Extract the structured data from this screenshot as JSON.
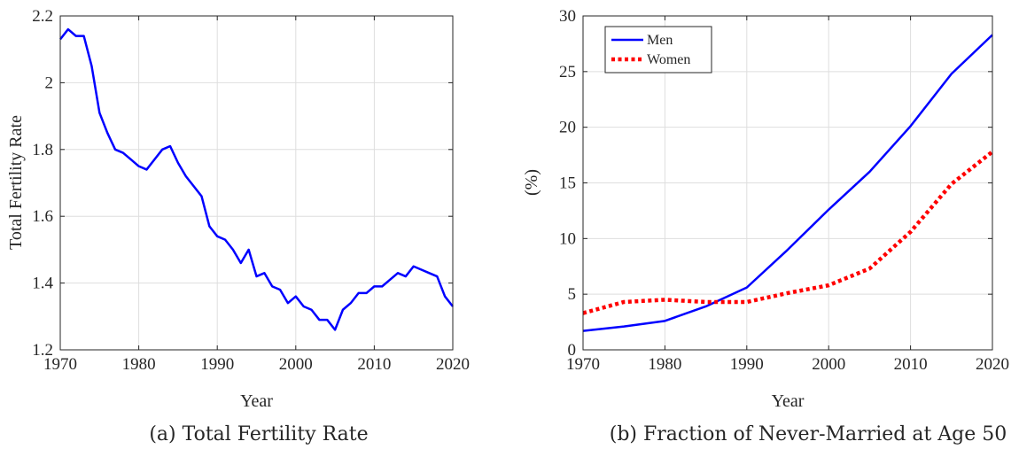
{
  "chart_data": [
    {
      "type": "line",
      "caption": "(a) Total Fertility Rate",
      "xlabel": "Year",
      "ylabel": "Total Fertility Rate",
      "xlim": [
        1970,
        2020
      ],
      "ylim": [
        1.2,
        2.2
      ],
      "xticks": [
        1970,
        1980,
        1990,
        2000,
        2010,
        2020
      ],
      "yticks": [
        1.2,
        1.4,
        1.6,
        1.8,
        2.0,
        2.2
      ],
      "ytick_labels": [
        "1.2",
        "1.4",
        "1.6",
        "1.8",
        "2",
        "2.2"
      ],
      "grid": true,
      "series": [
        {
          "color": "#0000ff",
          "style": "solid",
          "x": [
            1970,
            1971,
            1972,
            1973,
            1974,
            1975,
            1976,
            1977,
            1978,
            1979,
            1980,
            1981,
            1982,
            1983,
            1984,
            1985,
            1986,
            1987,
            1988,
            1989,
            1990,
            1991,
            1992,
            1993,
            1994,
            1995,
            1996,
            1997,
            1998,
            1999,
            2000,
            2001,
            2002,
            2003,
            2004,
            2005,
            2006,
            2007,
            2008,
            2009,
            2010,
            2011,
            2012,
            2013,
            2014,
            2015,
            2016,
            2017,
            2018,
            2019,
            2020
          ],
          "values": [
            2.13,
            2.16,
            2.14,
            2.14,
            2.05,
            1.91,
            1.85,
            1.8,
            1.79,
            1.77,
            1.75,
            1.74,
            1.77,
            1.8,
            1.81,
            1.76,
            1.72,
            1.69,
            1.66,
            1.57,
            1.54,
            1.53,
            1.5,
            1.46,
            1.5,
            1.42,
            1.43,
            1.39,
            1.38,
            1.34,
            1.36,
            1.33,
            1.32,
            1.29,
            1.29,
            1.26,
            1.32,
            1.34,
            1.37,
            1.37,
            1.39,
            1.39,
            1.41,
            1.43,
            1.42,
            1.45,
            1.44,
            1.43,
            1.42,
            1.36,
            1.33
          ]
        }
      ]
    },
    {
      "type": "line",
      "caption": "(b) Fraction of Never-Married at Age 50",
      "xlabel": "Year",
      "ylabel": "(%)",
      "xlim": [
        1970,
        2020
      ],
      "ylim": [
        0,
        30
      ],
      "xticks": [
        1970,
        1980,
        1990,
        2000,
        2010,
        2020
      ],
      "yticks": [
        0,
        5,
        10,
        15,
        20,
        25,
        30
      ],
      "ytick_labels": [
        "0",
        "5",
        "10",
        "15",
        "20",
        "25",
        "30"
      ],
      "grid": true,
      "legend_position": "top-left",
      "series": [
        {
          "name": "Men",
          "color": "#0000ff",
          "style": "solid",
          "x": [
            1970,
            1975,
            1980,
            1985,
            1990,
            1995,
            2000,
            2005,
            2010,
            2015,
            2020
          ],
          "values": [
            1.7,
            2.1,
            2.6,
            3.9,
            5.6,
            9.0,
            12.6,
            16.0,
            20.1,
            24.8,
            28.3
          ]
        },
        {
          "name": "Women",
          "color": "#ff0000",
          "style": "dotted",
          "x": [
            1970,
            1975,
            1980,
            1985,
            1990,
            1995,
            2000,
            2005,
            2010,
            2015,
            2020
          ],
          "values": [
            3.3,
            4.3,
            4.5,
            4.3,
            4.3,
            5.1,
            5.8,
            7.3,
            10.6,
            14.9,
            17.8
          ]
        }
      ]
    }
  ]
}
